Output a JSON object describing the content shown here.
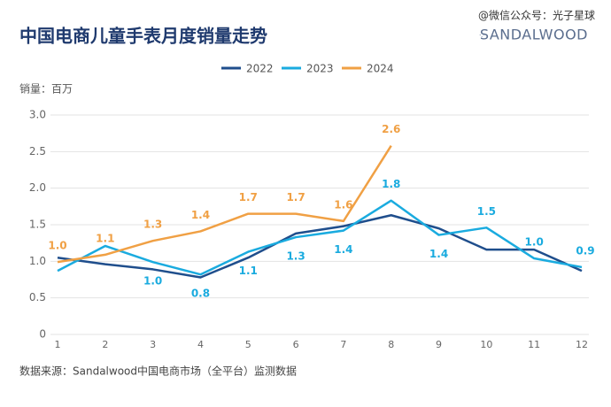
{
  "chart_data": {
    "type": "line",
    "title": "中国电商儿童手表月度销量走势",
    "watermark": "@微信公众号：光子星球",
    "brand": "SANDALWOOD",
    "y_label": "销量：百万",
    "source": "数据来源：Sandalwood中国电商市场（全平台）监测数据",
    "x": [
      1,
      2,
      3,
      4,
      5,
      6,
      7,
      8,
      9,
      10,
      11,
      12
    ],
    "xlim": [
      1,
      12
    ],
    "xticks": [
      1,
      2,
      3,
      4,
      5,
      6,
      7,
      8,
      9,
      10,
      11,
      12
    ],
    "ylim": [
      0,
      3
    ],
    "yticks": [
      0,
      0.5,
      {
        "value": 1,
        "label": "1.0"
      },
      1.5,
      {
        "value": 2,
        "label": "2.0"
      },
      2.5,
      {
        "value": 3,
        "label": "3.0"
      }
    ],
    "grid": true,
    "legend": "top",
    "series": [
      {
        "name": "2022",
        "color": "#1f4e8c",
        "values": [
          1.05,
          0.96,
          0.89,
          0.78,
          1.05,
          1.38,
          1.48,
          1.63,
          1.45,
          1.16,
          1.16,
          0.87
        ]
      },
      {
        "name": "2023",
        "color": "#1aabdf",
        "values": [
          0.87,
          1.21,
          0.99,
          0.82,
          1.13,
          1.33,
          1.42,
          1.83,
          1.36,
          1.46,
          1.04,
          0.92
        ],
        "value_labels": [
          null,
          null,
          "1.0",
          "0.8",
          "1.1",
          "1.3",
          "1.4",
          "1.8",
          "1.4",
          "1.5",
          "1.0",
          "0.9"
        ]
      },
      {
        "name": "2024",
        "color": "#f0a044",
        "values": [
          0.99,
          1.09,
          1.28,
          1.41,
          1.65,
          1.65,
          1.55,
          2.58,
          null,
          null,
          null,
          null
        ],
        "value_labels": [
          "1.0",
          "1.1",
          "1.3",
          "1.4",
          "1.7",
          "1.7",
          "1.6",
          "2.6",
          null,
          null,
          null,
          null
        ]
      }
    ]
  }
}
